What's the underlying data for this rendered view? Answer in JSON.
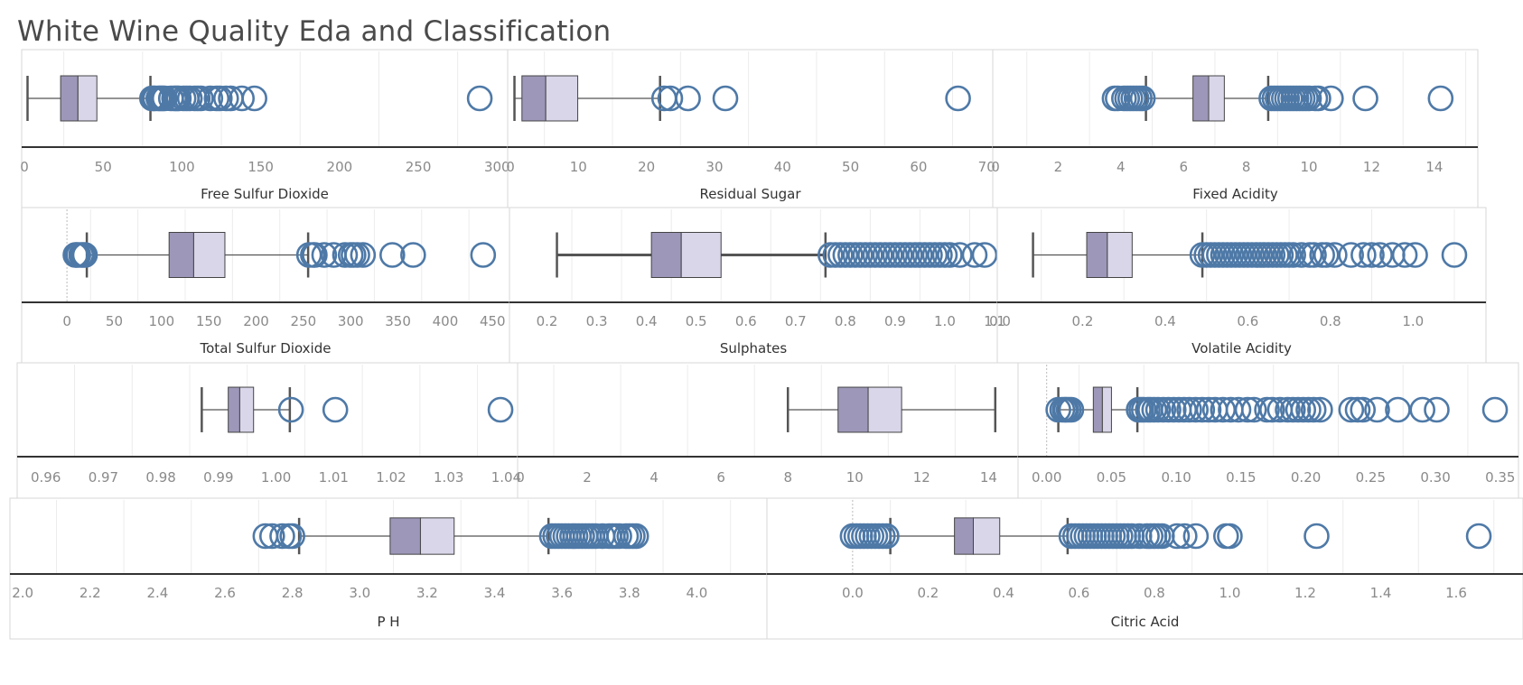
{
  "page": {
    "title": "White Wine Quality Eda and Classification"
  },
  "colors": {
    "box_lower": "#9d97b9",
    "box_upper": "#d9d6ea",
    "outlier": "#4e79a7",
    "whisker": "#555555"
  },
  "chart_data": [
    {
      "type": "boxplot",
      "xlabel": "Free Sulfur Dioxide",
      "xlim": [
        0,
        305
      ],
      "ticks": [
        0,
        50,
        100,
        150,
        200,
        250,
        300
      ],
      "whisker_low": 2,
      "q1": 23,
      "median": 34,
      "q3": 46,
      "whisker_high": 80,
      "outliers": [
        81,
        82,
        83,
        85,
        86,
        87,
        88,
        89,
        93,
        95,
        96,
        97,
        98,
        101,
        103,
        105,
        108,
        110,
        112,
        118,
        122,
        124,
        128,
        131,
        138,
        146,
        289
      ]
    },
    {
      "type": "boxplot",
      "xlabel": "Residual Sugar",
      "xlim": [
        0,
        70.5
      ],
      "ticks": [
        0,
        10,
        20,
        30,
        40,
        50,
        60,
        70
      ],
      "whisker_low": 0.6,
      "q1": 1.7,
      "median": 5.2,
      "q3": 9.9,
      "whisker_high": 22,
      "outliers": [
        22.6,
        23.5,
        26.1,
        31.6,
        65.8
      ]
    },
    {
      "type": "boxplot",
      "xlabel": "Fixed Acidity",
      "xlim": [
        0,
        15.3
      ],
      "ticks": [
        0,
        2,
        4,
        6,
        8,
        10,
        12,
        14
      ],
      "whisker_low": 4.8,
      "q1": 6.3,
      "median": 6.8,
      "q3": 7.3,
      "whisker_high": 8.7,
      "outliers": [
        3.8,
        3.9,
        4.1,
        4.2,
        4.3,
        4.4,
        4.5,
        4.6,
        4.7,
        8.8,
        8.9,
        9.0,
        9.1,
        9.2,
        9.3,
        9.4,
        9.5,
        9.6,
        9.7,
        9.8,
        9.9,
        10.0,
        10.2,
        10.3,
        10.7,
        11.8,
        14.2
      ]
    },
    {
      "type": "boxplot",
      "xlabel": "Total Sulfur Dioxide",
      "xlim": [
        -45,
        465
      ],
      "ticks": [
        0,
        50,
        100,
        150,
        200,
        250,
        300,
        350,
        400,
        450
      ],
      "whisker_low": 21,
      "q1": 108,
      "median": 134,
      "q3": 167,
      "whisker_high": 255,
      "outliers": [
        9,
        10,
        12,
        15,
        17,
        19,
        256,
        260,
        262,
        272,
        282,
        294,
        300,
        303,
        307,
        313,
        344,
        366,
        440
      ]
    },
    {
      "type": "boxplot",
      "xlabel": "Sulphates",
      "xlim": [
        0.13,
        1.1
      ],
      "ticks": [
        0.2,
        0.3,
        0.4,
        0.5,
        0.6,
        0.7,
        0.8,
        0.9,
        1.0,
        1.1
      ],
      "whisker_low": 0.22,
      "q1": 0.41,
      "median": 0.47,
      "q3": 0.55,
      "whisker_high": 0.76,
      "outliers": [
        0.77,
        0.78,
        0.79,
        0.8,
        0.81,
        0.82,
        0.83,
        0.84,
        0.85,
        0.86,
        0.87,
        0.88,
        0.89,
        0.9,
        0.91,
        0.92,
        0.93,
        0.94,
        0.95,
        0.96,
        0.97,
        0.98,
        0.99,
        1.0,
        1.01,
        1.03,
        1.06,
        1.08
      ]
    },
    {
      "type": "boxplot",
      "xlabel": "Volatile Acidity",
      "xlim": [
        0,
        1.17
      ],
      "ticks": [
        0.0,
        0.2,
        0.4,
        0.6,
        0.8,
        1.0
      ],
      "whisker_low": 0.08,
      "q1": 0.21,
      "median": 0.26,
      "q3": 0.32,
      "whisker_high": 0.49,
      "outliers": [
        0.49,
        0.5,
        0.51,
        0.52,
        0.53,
        0.54,
        0.55,
        0.56,
        0.57,
        0.58,
        0.59,
        0.6,
        0.61,
        0.62,
        0.63,
        0.64,
        0.65,
        0.66,
        0.67,
        0.68,
        0.69,
        0.7,
        0.71,
        0.73,
        0.75,
        0.76,
        0.78,
        0.79,
        0.81,
        0.85,
        0.88,
        0.9,
        0.92,
        0.95,
        0.98,
        1.005,
        1.1
      ]
    },
    {
      "type": "boxplot",
      "xlabel": "",
      "xlim": [
        0.9555,
        1.0415
      ],
      "ticks": [
        0.96,
        0.97,
        0.98,
        0.99,
        1.0,
        1.01,
        1.02,
        1.03,
        1.04
      ],
      "whisker_low": 0.9871,
      "q1": 0.9917,
      "median": 0.9937,
      "q3": 0.9961,
      "whisker_high": 1.0024,
      "outliers": [
        1.0026,
        1.0103,
        1.039
      ]
    },
    {
      "type": "boxplot",
      "xlabel": "",
      "xlim": [
        0,
        14.8
      ],
      "ticks": [
        0,
        2,
        4,
        6,
        8,
        10,
        12,
        14
      ],
      "whisker_low": 8.0,
      "q1": 9.5,
      "median": 10.4,
      "q3": 11.4,
      "whisker_high": 14.2,
      "outliers": []
    },
    {
      "type": "boxplot",
      "xlabel": "",
      "xlim": [
        -0.02,
        0.362
      ],
      "ticks": [
        0.0,
        0.05,
        0.1,
        0.15,
        0.2,
        0.25,
        0.3,
        0.35
      ],
      "whisker_low": 0.009,
      "q1": 0.036,
      "median": 0.043,
      "q3": 0.05,
      "whisker_high": 0.07,
      "outliers": [
        0.009,
        0.012,
        0.014,
        0.015,
        0.017,
        0.019,
        0.071,
        0.073,
        0.075,
        0.078,
        0.08,
        0.083,
        0.086,
        0.09,
        0.094,
        0.098,
        0.102,
        0.106,
        0.11,
        0.115,
        0.12,
        0.125,
        0.13,
        0.136,
        0.142,
        0.148,
        0.155,
        0.16,
        0.17,
        0.174,
        0.18,
        0.186,
        0.19,
        0.194,
        0.198,
        0.202,
        0.206,
        0.211,
        0.235,
        0.24,
        0.244,
        0.255,
        0.271,
        0.29,
        0.301,
        0.346
      ]
    },
    {
      "type": "boxplot",
      "xlabel": "P H",
      "xlim": [
        1.97,
        4.2
      ],
      "ticks": [
        2.0,
        2.2,
        2.4,
        2.6,
        2.8,
        3.0,
        3.2,
        3.4,
        3.6,
        3.8,
        4.0
      ],
      "whisker_low": 2.82,
      "q1": 3.09,
      "median": 3.18,
      "q3": 3.28,
      "whisker_high": 3.56,
      "outliers": [
        2.72,
        2.74,
        2.77,
        2.79,
        2.8,
        3.57,
        3.58,
        3.59,
        3.6,
        3.61,
        3.62,
        3.63,
        3.64,
        3.65,
        3.66,
        3.67,
        3.68,
        3.69,
        3.7,
        3.72,
        3.74,
        3.75,
        3.76,
        3.77,
        3.79,
        3.8,
        3.81,
        3.82
      ]
    },
    {
      "type": "boxplot",
      "xlabel": "Citric Acid",
      "xlim": [
        -0.22,
        1.77
      ],
      "ticks": [
        0.0,
        0.2,
        0.4,
        0.6,
        0.8,
        1.0,
        1.2,
        1.4,
        1.6
      ],
      "whisker_low": 0.1,
      "q1": 0.27,
      "median": 0.32,
      "q3": 0.39,
      "whisker_high": 0.57,
      "outliers": [
        0.0,
        0.01,
        0.02,
        0.03,
        0.04,
        0.05,
        0.06,
        0.07,
        0.08,
        0.09,
        0.58,
        0.59,
        0.6,
        0.61,
        0.62,
        0.63,
        0.64,
        0.65,
        0.66,
        0.67,
        0.68,
        0.69,
        0.7,
        0.71,
        0.72,
        0.73,
        0.74,
        0.76,
        0.78,
        0.79,
        0.8,
        0.81,
        0.82,
        0.86,
        0.88,
        0.91,
        0.99,
        1.0,
        1.23,
        1.66
      ]
    }
  ]
}
